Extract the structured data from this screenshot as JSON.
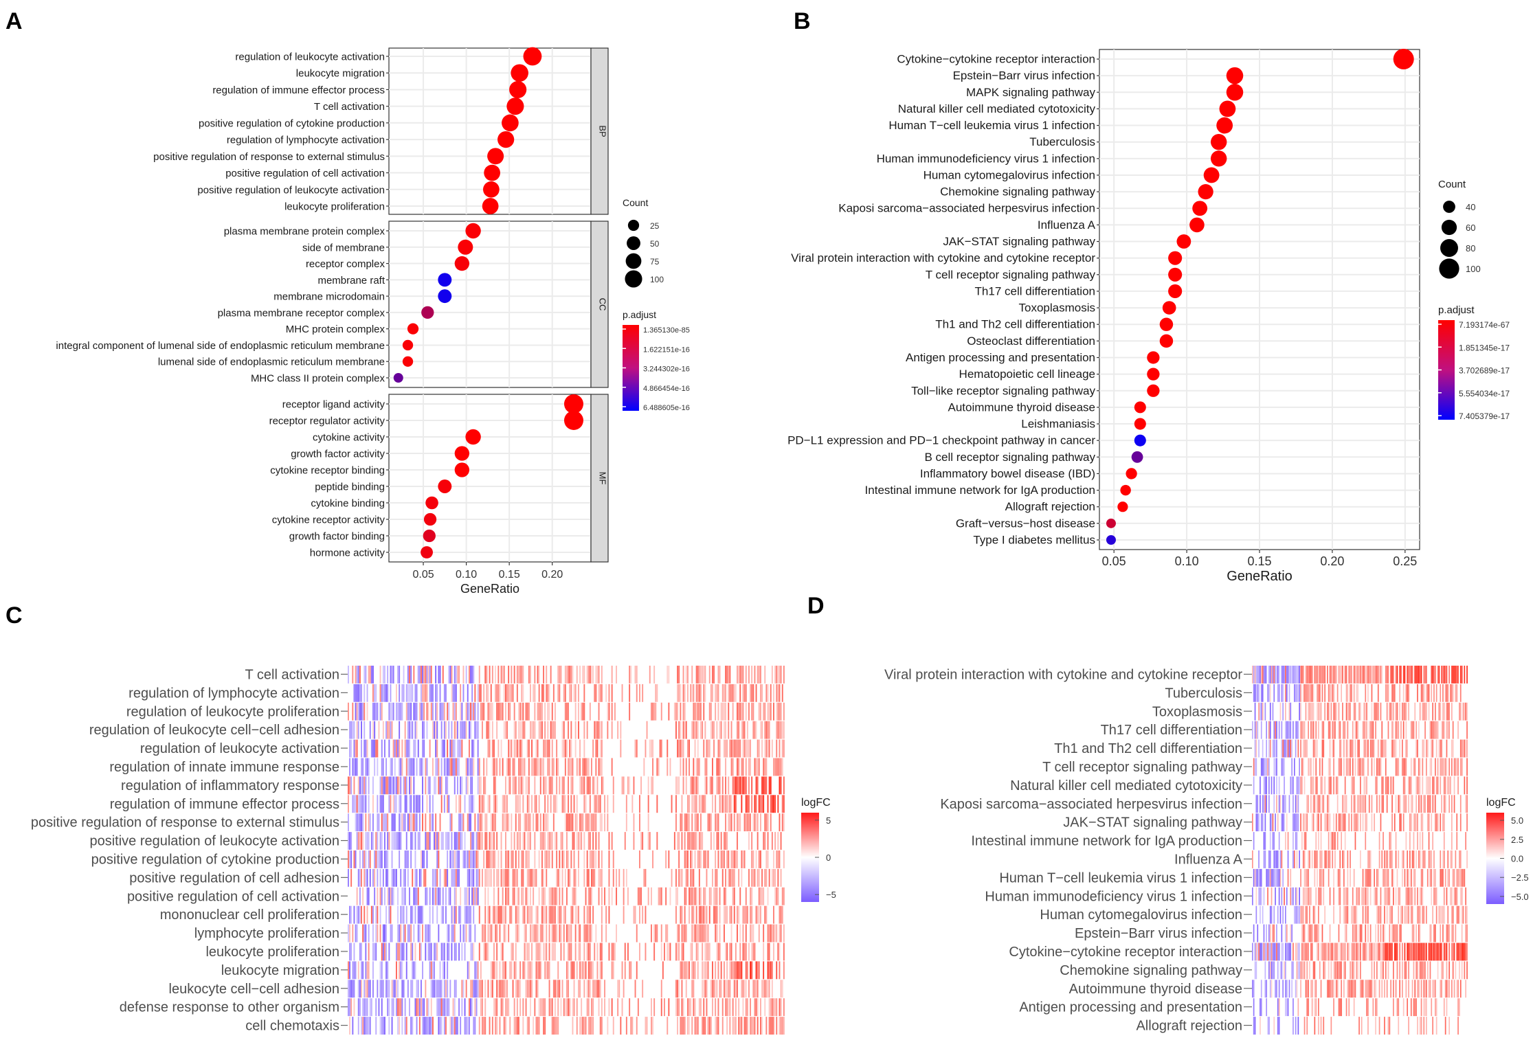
{
  "colors": {
    "high": "#ff1a1a",
    "mid": "#ffffff",
    "low": "#7b5cff",
    "panel": "#d9d9d9",
    "grid": "#ebebeb",
    "border": "#333333"
  },
  "chart_data": [
    {
      "panel": "A",
      "type": "scatter",
      "xlabel": "GeneRatio",
      "xlim": [
        0.01,
        0.245
      ],
      "xticks": [
        0.05,
        0.1,
        0.15,
        0.2
      ],
      "xtick_labels": [
        "0.05",
        "0.10",
        "0.15",
        "0.20"
      ],
      "legend_count": {
        "title": "Count",
        "values": [
          25,
          50,
          75,
          100
        ],
        "labels": [
          "25",
          "50",
          "75",
          "100"
        ]
      },
      "legend_padj": {
        "title": "p.adjust",
        "labels": [
          "1.365130e-85",
          "1.622151e-16",
          "3.244302e-16",
          "4.866454e-16",
          "6.488605e-16"
        ]
      },
      "facets": [
        {
          "name": "BP",
          "terms": [
            {
              "label": "regulation of leukocyte activation",
              "x": 0.177,
              "count": 120,
              "padj": 0
            },
            {
              "label": "leukocyte migration",
              "x": 0.162,
              "count": 105,
              "padj": 0
            },
            {
              "label": "regulation of immune effector process",
              "x": 0.16,
              "count": 100,
              "padj": 0
            },
            {
              "label": "T cell activation",
              "x": 0.157,
              "count": 100,
              "padj": 0
            },
            {
              "label": "positive regulation of cytokine production",
              "x": 0.151,
              "count": 95,
              "padj": 0
            },
            {
              "label": "regulation of lymphocyte activation",
              "x": 0.146,
              "count": 90,
              "padj": 0
            },
            {
              "label": "positive regulation of response to external stimulus",
              "x": 0.134,
              "count": 88,
              "padj": 0
            },
            {
              "label": "positive regulation of cell activation",
              "x": 0.13,
              "count": 85,
              "padj": 0
            },
            {
              "label": "positive regulation of leukocyte activation",
              "x": 0.129,
              "count": 85,
              "padj": 0
            },
            {
              "label": "leukocyte proliferation",
              "x": 0.128,
              "count": 85,
              "padj": 0
            }
          ]
        },
        {
          "name": "CC",
          "terms": [
            {
              "label": "plasma membrane protein complex",
              "x": 0.108,
              "count": 72,
              "padj": 0.02
            },
            {
              "label": "side of membrane",
              "x": 0.099,
              "count": 68,
              "padj": 0.02
            },
            {
              "label": "receptor complex",
              "x": 0.095,
              "count": 62,
              "padj": 0.03
            },
            {
              "label": "membrane raft",
              "x": 0.075,
              "count": 50,
              "padj": 0.93
            },
            {
              "label": "membrane microdomain",
              "x": 0.075,
              "count": 50,
              "padj": 0.93
            },
            {
              "label": "plasma membrane receptor complex",
              "x": 0.055,
              "count": 38,
              "padj": 0.32
            },
            {
              "label": "MHC protein complex",
              "x": 0.038,
              "count": 25,
              "padj": 0.02
            },
            {
              "label": "integral component of lumenal side of endoplasmic reticulum membrane",
              "x": 0.032,
              "count": 20,
              "padj": 0.02
            },
            {
              "label": "lumenal side of endoplasmic reticulum membrane",
              "x": 0.032,
              "count": 20,
              "padj": 0.02
            },
            {
              "label": "MHC class II protein complex",
              "x": 0.021,
              "count": 14,
              "padj": 0.6
            }
          ]
        },
        {
          "name": "MF",
          "terms": [
            {
              "label": "receptor ligand activity",
              "x": 0.225,
              "count": 135,
              "padj": 0
            },
            {
              "label": "receptor regulator activity",
              "x": 0.225,
              "count": 135,
              "padj": 0
            },
            {
              "label": "cytokine activity",
              "x": 0.108,
              "count": 72,
              "padj": 0
            },
            {
              "label": "growth factor activity",
              "x": 0.095,
              "count": 62,
              "padj": 0
            },
            {
              "label": "cytokine receptor binding",
              "x": 0.095,
              "count": 62,
              "padj": 0
            },
            {
              "label": "peptide binding",
              "x": 0.075,
              "count": 50,
              "padj": 0.03
            },
            {
              "label": "cytokine binding",
              "x": 0.06,
              "count": 40,
              "padj": 0.04
            },
            {
              "label": "cytokine receptor activity",
              "x": 0.058,
              "count": 38,
              "padj": 0.05
            },
            {
              "label": "growth factor binding",
              "x": 0.057,
              "count": 38,
              "padj": 0.12
            },
            {
              "label": "hormone activity",
              "x": 0.054,
              "count": 35,
              "padj": 0.06
            }
          ]
        }
      ]
    },
    {
      "panel": "B",
      "type": "scatter",
      "xlabel": "GeneRatio",
      "xlim": [
        0.04,
        0.26
      ],
      "xticks": [
        0.05,
        0.1,
        0.15,
        0.2,
        0.25
      ],
      "xtick_labels": [
        "0.05",
        "0.10",
        "0.15",
        "0.20",
        "0.25"
      ],
      "legend_count": {
        "title": "Count",
        "values": [
          40,
          60,
          80,
          100
        ],
        "labels": [
          "40",
          "60",
          "80",
          "100"
        ]
      },
      "legend_padj": {
        "title": "p.adjust",
        "labels": [
          "7.193174e-67",
          "1.851345e-17",
          "3.702689e-17",
          "5.554034e-17",
          "7.405379e-17"
        ]
      },
      "terms": [
        {
          "label": "Cytokine−cytokine receptor interaction",
          "x": 0.249,
          "count": 105,
          "padj": 0
        },
        {
          "label": "Epstein−Barr virus infection",
          "x": 0.133,
          "count": 72,
          "padj": 0
        },
        {
          "label": "MAPK signaling pathway",
          "x": 0.133,
          "count": 72,
          "padj": 0
        },
        {
          "label": "Natural killer cell mediated cytotoxicity",
          "x": 0.128,
          "count": 68,
          "padj": 0
        },
        {
          "label": "Human T−cell leukemia virus 1 infection",
          "x": 0.126,
          "count": 68,
          "padj": 0
        },
        {
          "label": "Tuberculosis",
          "x": 0.122,
          "count": 66,
          "padj": 0
        },
        {
          "label": "Human immunodeficiency virus 1 infection",
          "x": 0.122,
          "count": 66,
          "padj": 0
        },
        {
          "label": "Human cytomegalovirus infection",
          "x": 0.117,
          "count": 63,
          "padj": 0
        },
        {
          "label": "Chemokine signaling pathway",
          "x": 0.113,
          "count": 60,
          "padj": 0
        },
        {
          "label": "Kaposi sarcoma−associated herpesvirus infection",
          "x": 0.109,
          "count": 58,
          "padj": 0
        },
        {
          "label": "Influenza A",
          "x": 0.107,
          "count": 57,
          "padj": 0
        },
        {
          "label": "JAK−STAT signaling pathway",
          "x": 0.098,
          "count": 53,
          "padj": 0
        },
        {
          "label": "Viral protein interaction with cytokine and cytokine receptor",
          "x": 0.092,
          "count": 50,
          "padj": 0
        },
        {
          "label": "T cell receptor signaling pathway",
          "x": 0.092,
          "count": 50,
          "padj": 0
        },
        {
          "label": "Th17 cell differentiation",
          "x": 0.092,
          "count": 50,
          "padj": 0
        },
        {
          "label": "Toxoplasmosis",
          "x": 0.088,
          "count": 48,
          "padj": 0
        },
        {
          "label": "Th1 and Th2 cell differentiation",
          "x": 0.086,
          "count": 47,
          "padj": 0
        },
        {
          "label": "Osteoclast differentiation",
          "x": 0.086,
          "count": 47,
          "padj": 0
        },
        {
          "label": "Antigen processing and presentation",
          "x": 0.077,
          "count": 42,
          "padj": 0
        },
        {
          "label": "Hematopoietic cell lineage",
          "x": 0.077,
          "count": 42,
          "padj": 0
        },
        {
          "label": "Toll−like receptor signaling pathway",
          "x": 0.077,
          "count": 42,
          "padj": 0
        },
        {
          "label": "Autoimmune thyroid disease",
          "x": 0.068,
          "count": 37,
          "padj": 0
        },
        {
          "label": "Leishmaniasis",
          "x": 0.068,
          "count": 37,
          "padj": 0
        },
        {
          "label": "PD−L1 expression and PD−1 checkpoint pathway in cancer",
          "x": 0.068,
          "count": 37,
          "padj": 0.95
        },
        {
          "label": "B cell receptor signaling pathway",
          "x": 0.066,
          "count": 36,
          "padj": 0.6
        },
        {
          "label": "Inflammatory bowel disease (IBD)",
          "x": 0.062,
          "count": 34,
          "padj": 0
        },
        {
          "label": "Intestinal immune network for IgA production",
          "x": 0.058,
          "count": 31,
          "padj": 0
        },
        {
          "label": "Allograft rejection",
          "x": 0.056,
          "count": 30,
          "padj": 0
        },
        {
          "label": "Graft−versus−host disease",
          "x": 0.048,
          "count": 26,
          "padj": 0.2
        },
        {
          "label": "Type I diabetes mellitus",
          "x": 0.048,
          "count": 26,
          "padj": 0.85
        }
      ]
    },
    {
      "panel": "C",
      "type": "heatmap",
      "legend_title": "logFC",
      "legend_ticks": [
        5,
        0,
        -5
      ],
      "legend_tick_labels": [
        "5",
        "0",
        "−5"
      ],
      "rows": [
        "T cell activation",
        "regulation of lymphocyte activation",
        "regulation of leukocyte proliferation",
        "regulation of leukocyte cell−cell adhesion",
        "regulation of leukocyte activation",
        "regulation of innate immune response",
        "regulation of inflammatory response",
        "regulation of immune effector process",
        "positive regulation of response to external stimulus",
        "positive regulation of leukocyte activation",
        "positive regulation of cytokine production",
        "positive regulation of cell adhesion",
        "positive regulation of cell activation",
        "mononuclear cell proliferation",
        "lymphocyte proliferation",
        "leukocyte proliferation",
        "leukocyte migration",
        "leukocyte cell−cell adhesion",
        "defense response to other organism",
        "cell chemotaxis"
      ]
    },
    {
      "panel": "D",
      "type": "heatmap",
      "legend_title": "logFC",
      "legend_ticks": [
        5,
        2.5,
        0,
        -2.5,
        -5
      ],
      "legend_tick_labels": [
        "5.0",
        "2.5",
        "0.0",
        "−2.5",
        "−5.0"
      ],
      "rows": [
        "Viral protein interaction with cytokine and cytokine receptor",
        "Tuberculosis",
        "Toxoplasmosis",
        "Th17 cell differentiation",
        "Th1 and Th2 cell differentiation",
        "T cell receptor signaling pathway",
        "Natural killer cell mediated cytotoxicity",
        "Kaposi sarcoma−associated herpesvirus infection",
        "JAK−STAT signaling pathway",
        "Intestinal immune network for IgA production",
        "Influenza A",
        "Human T−cell leukemia virus 1 infection",
        "Human immunodeficiency virus 1 infection",
        "Human cytomegalovirus infection",
        "Epstein−Barr virus infection",
        "Cytokine−cytokine receptor interaction",
        "Chemokine signaling pathway",
        "Autoimmune thyroid disease",
        "Antigen processing and presentation",
        "Allograft rejection"
      ]
    }
  ]
}
